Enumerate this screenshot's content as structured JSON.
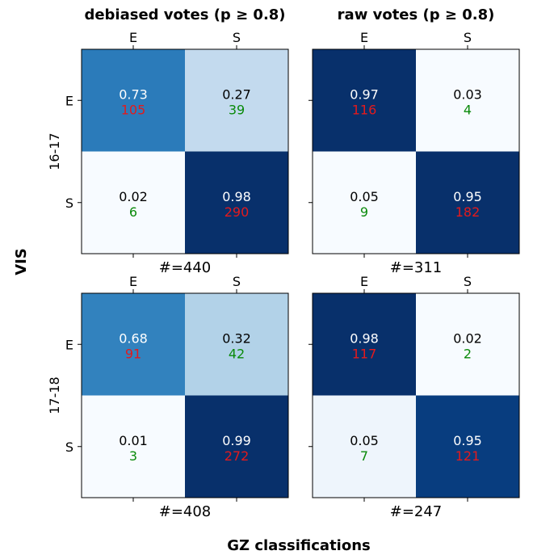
{
  "figure": {
    "ylabel": "VIS",
    "xlabel": "GZ classifications",
    "row_labels": [
      "16-17",
      "17-18"
    ]
  },
  "chart_data": [
    {
      "type": "heatmap",
      "title": "debiased votes (p ≥ 0.8)",
      "x_tick_labels": [
        "E",
        "S"
      ],
      "y_tick_labels": [
        "E",
        "S"
      ],
      "ylabel": "16-17",
      "xlabel": "#=440",
      "fractions": [
        [
          0.73,
          0.27
        ],
        [
          0.02,
          0.98
        ]
      ],
      "counts": [
        [
          105,
          39
        ],
        [
          6,
          290
        ]
      ],
      "colors": [
        [
          "#2b7bba",
          "#c3daee"
        ],
        [
          "#f7fbff",
          "#08306b"
        ]
      ]
    },
    {
      "type": "heatmap",
      "title": "raw votes (p ≥ 0.8)",
      "x_tick_labels": [
        "E",
        "S"
      ],
      "y_tick_labels": [
        "E",
        "S"
      ],
      "ylabel": "16-17",
      "xlabel": "#=311",
      "fractions": [
        [
          0.97,
          0.03
        ],
        [
          0.05,
          0.95
        ]
      ],
      "counts": [
        [
          116,
          4
        ],
        [
          9,
          182
        ]
      ],
      "colors": [
        [
          "#08306b",
          "#f7fbff"
        ],
        [
          "#f7fbff",
          "#08306b"
        ]
      ]
    },
    {
      "type": "heatmap",
      "title": "",
      "x_tick_labels": [
        "E",
        "S"
      ],
      "y_tick_labels": [
        "E",
        "S"
      ],
      "ylabel": "17-18",
      "xlabel": "#=408",
      "fractions": [
        [
          0.68,
          0.32
        ],
        [
          0.01,
          0.99
        ]
      ],
      "counts": [
        [
          91,
          42
        ],
        [
          3,
          272
        ]
      ],
      "colors": [
        [
          "#3282be",
          "#b2d2e8"
        ],
        [
          "#f7fbff",
          "#08306b"
        ]
      ]
    },
    {
      "type": "heatmap",
      "title": "",
      "x_tick_labels": [
        "E",
        "S"
      ],
      "y_tick_labels": [
        "E",
        "S"
      ],
      "ylabel": "17-18",
      "xlabel": "#=247",
      "fractions": [
        [
          0.98,
          0.02
        ],
        [
          0.05,
          0.95
        ]
      ],
      "counts": [
        [
          117,
          2
        ],
        [
          7,
          121
        ]
      ],
      "colors": [
        [
          "#08306b",
          "#f7fbff"
        ],
        [
          "#eef5fc",
          "#083d7f"
        ]
      ]
    }
  ],
  "colors": {
    "correct_count": "#e41a1c",
    "wrong_count": "#0a8a0a",
    "text_light": "#ffffff",
    "text_dark": "#000000"
  }
}
